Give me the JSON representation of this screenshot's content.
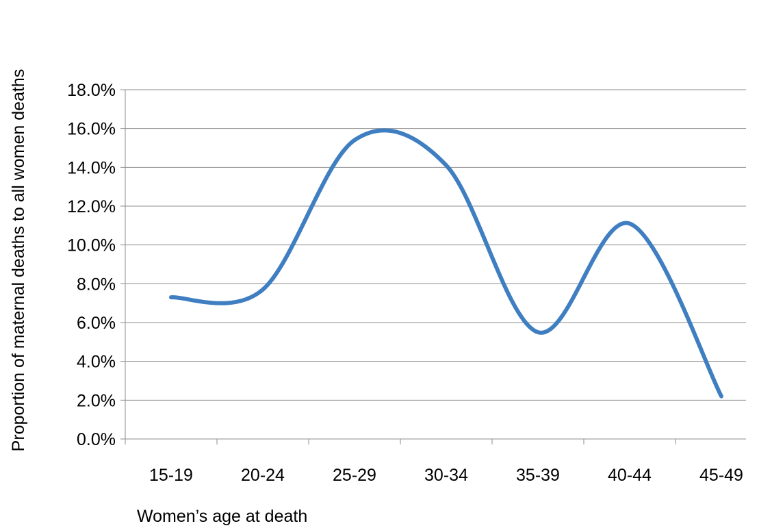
{
  "chart_data": {
    "type": "line",
    "title": "",
    "xlabel": "Women’s age at death",
    "ylabel": "Proportion of maternal deaths to all women deaths",
    "categories": [
      "15-19",
      "20-24",
      "25-29",
      "30-34",
      "35-39",
      "40-44",
      "45-49"
    ],
    "series": [
      {
        "values": [
          7.3,
          7.7,
          15.4,
          14.1,
          5.5,
          11.1,
          2.2
        ],
        "color": "#3f7fc1",
        "smooth": true
      }
    ],
    "ylim": [
      0,
      18
    ],
    "yticks": [
      0,
      2,
      4,
      6,
      8,
      10,
      12,
      14,
      16,
      18
    ],
    "ytick_format": "percent_1dp",
    "grid": "horizontal",
    "legend": "none"
  }
}
